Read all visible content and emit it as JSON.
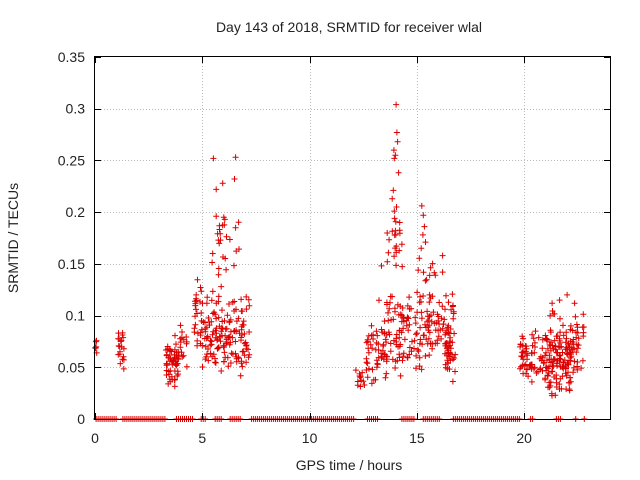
{
  "chart_data": {
    "type": "scatter",
    "title": "Day 143 of 2018, SRMTID for receiver wlal",
    "xlabel": "GPS time / hours",
    "ylabel": "SRMTID / TECUs",
    "xlim": [
      0,
      24.0
    ],
    "ylim": [
      0,
      0.35
    ],
    "grid": true,
    "x_ticks": [
      0,
      5,
      10,
      15,
      20
    ],
    "x_tick_labels": [
      "0",
      "5",
      "10",
      "15",
      "20"
    ],
    "y_ticks": [
      0,
      0.05,
      0.1,
      0.15,
      0.2,
      0.25,
      0.3,
      0.35
    ],
    "y_tick_labels": [
      "0",
      "0.05",
      "0.1",
      "0.15",
      "0.2",
      "0.25",
      "0.3",
      "0.35"
    ],
    "marker": "+",
    "color": "#dd0000",
    "zero_segments": [
      [
        0.05,
        1.05
      ],
      [
        1.3,
        3.3
      ],
      [
        3.8,
        4.55
      ],
      [
        4.95,
        5.15
      ],
      [
        5.6,
        5.95
      ],
      [
        6.3,
        6.85
      ],
      [
        7.3,
        12.1
      ],
      [
        12.7,
        13.25
      ],
      [
        14.3,
        14.9
      ],
      [
        15.3,
        16.1
      ],
      [
        16.7,
        19.8
      ],
      [
        20.3,
        20.45
      ],
      [
        21.5,
        21.7
      ],
      [
        22.4,
        22.45
      ],
      [
        22.8,
        22.85
      ]
    ],
    "clusters": [
      {
        "x": [
          0.0,
          0.1
        ],
        "y": [
          0.055,
          0.078
        ],
        "n": 6
      },
      {
        "x": [
          1.05,
          1.35
        ],
        "y": [
          0.04,
          0.09
        ],
        "n": 20
      },
      {
        "x": [
          3.3,
          3.9
        ],
        "y": [
          0.025,
          0.085
        ],
        "n": 55
      },
      {
        "x": [
          3.9,
          4.3
        ],
        "y": [
          0.045,
          0.095
        ],
        "n": 15
      },
      {
        "x": [
          4.55,
          5.0
        ],
        "y": [
          0.06,
          0.15
        ],
        "n": 25
      },
      {
        "x": [
          5.0,
          7.2
        ],
        "y": [
          0.04,
          0.13
        ],
        "n": 150
      },
      {
        "x": [
          5.3,
          6.9
        ],
        "y": [
          0.13,
          0.2
        ],
        "n": 20
      },
      {
        "x": [
          12.1,
          12.6
        ],
        "y": [
          0.02,
          0.06
        ],
        "n": 12
      },
      {
        "x": [
          12.6,
          13.6
        ],
        "y": [
          0.025,
          0.1
        ],
        "n": 40
      },
      {
        "x": [
          13.2,
          16.8
        ],
        "y": [
          0.04,
          0.13
        ],
        "n": 190
      },
      {
        "x": [
          13.6,
          14.4
        ],
        "y": [
          0.13,
          0.2
        ],
        "n": 18
      },
      {
        "x": [
          15.0,
          16.3
        ],
        "y": [
          0.12,
          0.16
        ],
        "n": 10
      },
      {
        "x": [
          16.3,
          16.8
        ],
        "y": [
          0.035,
          0.09
        ],
        "n": 25
      },
      {
        "x": [
          19.8,
          21.2
        ],
        "y": [
          0.03,
          0.09
        ],
        "n": 80
      },
      {
        "x": [
          21.0,
          22.2
        ],
        "y": [
          0.02,
          0.07
        ],
        "n": 70
      },
      {
        "x": [
          21.2,
          22.8
        ],
        "y": [
          0.04,
          0.11
        ],
        "n": 80
      }
    ],
    "points": [
      {
        "x": 5.52,
        "y": 0.252
      },
      {
        "x": 5.65,
        "y": 0.222
      },
      {
        "x": 5.95,
        "y": 0.228
      },
      {
        "x": 6.5,
        "y": 0.232
      },
      {
        "x": 6.55,
        "y": 0.253
      },
      {
        "x": 6.55,
        "y": 0.185
      },
      {
        "x": 6.0,
        "y": 0.195
      },
      {
        "x": 5.75,
        "y": 0.173
      },
      {
        "x": 6.05,
        "y": 0.193
      },
      {
        "x": 5.65,
        "y": 0.196
      },
      {
        "x": 5.85,
        "y": 0.173
      },
      {
        "x": 14.03,
        "y": 0.304
      },
      {
        "x": 14.07,
        "y": 0.277
      },
      {
        "x": 14.1,
        "y": 0.268
      },
      {
        "x": 13.93,
        "y": 0.26
      },
      {
        "x": 13.95,
        "y": 0.252
      },
      {
        "x": 14.0,
        "y": 0.255
      },
      {
        "x": 14.15,
        "y": 0.238
      },
      {
        "x": 13.9,
        "y": 0.221
      },
      {
        "x": 13.85,
        "y": 0.213
      },
      {
        "x": 14.05,
        "y": 0.205
      },
      {
        "x": 14.2,
        "y": 0.19
      },
      {
        "x": 14.0,
        "y": 0.182
      },
      {
        "x": 13.95,
        "y": 0.201
      },
      {
        "x": 15.23,
        "y": 0.206
      },
      {
        "x": 15.3,
        "y": 0.197
      },
      {
        "x": 15.35,
        "y": 0.186
      },
      {
        "x": 15.28,
        "y": 0.178
      },
      {
        "x": 15.2,
        "y": 0.165
      },
      {
        "x": 15.4,
        "y": 0.171
      },
      {
        "x": 16.2,
        "y": 0.158
      },
      {
        "x": 16.2,
        "y": 0.142
      },
      {
        "x": 13.35,
        "y": 0.148
      },
      {
        "x": 13.62,
        "y": 0.152
      },
      {
        "x": 22.0,
        "y": 0.12
      },
      {
        "x": 21.65,
        "y": 0.115
      },
      {
        "x": 22.35,
        "y": 0.112
      },
      {
        "x": 21.3,
        "y": 0.112
      }
    ]
  }
}
